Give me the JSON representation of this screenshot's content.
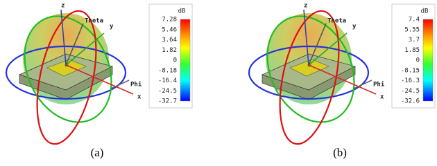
{
  "panels": [
    {
      "colorbar": {
        "unit": "dB",
        "labels": [
          "7.28",
          "5.46",
          "3.64",
          "1.82",
          "0",
          "-8.18",
          "-16.4",
          "-24.5",
          "-32.7"
        ]
      },
      "axes": {
        "z": "z",
        "theta": "Theta",
        "y": "y",
        "phi": "Phi",
        "x": "x"
      },
      "caption": "(a)"
    },
    {
      "colorbar": {
        "unit": "dB",
        "labels": [
          "7.4",
          "5.55",
          "3.7",
          "1.85",
          "0",
          "-8.15",
          "-16.3",
          "-24.5",
          "-32.6"
        ]
      },
      "axes": {
        "z": "z",
        "theta": "Theta",
        "y": "y",
        "phi": "Phi",
        "x": "x"
      },
      "caption": "(b)"
    }
  ]
}
